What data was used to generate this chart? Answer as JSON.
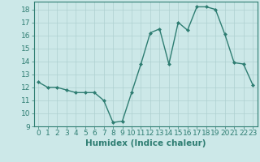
{
  "x": [
    0,
    1,
    2,
    3,
    4,
    5,
    6,
    7,
    8,
    9,
    10,
    11,
    12,
    13,
    14,
    15,
    16,
    17,
    18,
    19,
    20,
    21,
    22,
    23
  ],
  "y": [
    12.4,
    12.0,
    12.0,
    11.8,
    11.6,
    11.6,
    11.6,
    11.0,
    9.3,
    9.4,
    11.6,
    13.8,
    16.2,
    16.5,
    13.8,
    17.0,
    16.4,
    18.2,
    18.2,
    18.0,
    16.1,
    13.9,
    13.8,
    12.2
  ],
  "xlabel": "Humidex (Indice chaleur)",
  "xlim": [
    -0.5,
    23.5
  ],
  "ylim": [
    9,
    18.6
  ],
  "yticks": [
    9,
    10,
    11,
    12,
    13,
    14,
    15,
    16,
    17,
    18
  ],
  "xticks": [
    0,
    1,
    2,
    3,
    4,
    5,
    6,
    7,
    8,
    9,
    10,
    11,
    12,
    13,
    14,
    15,
    16,
    17,
    18,
    19,
    20,
    21,
    22,
    23
  ],
  "line_color": "#2e7d72",
  "marker_color": "#2e7d72",
  "bg_color": "#cce8e8",
  "grid_color": "#aed0d0",
  "axis_color": "#2e7d72",
  "xlabel_fontsize": 7.5,
  "tick_fontsize": 6.5
}
